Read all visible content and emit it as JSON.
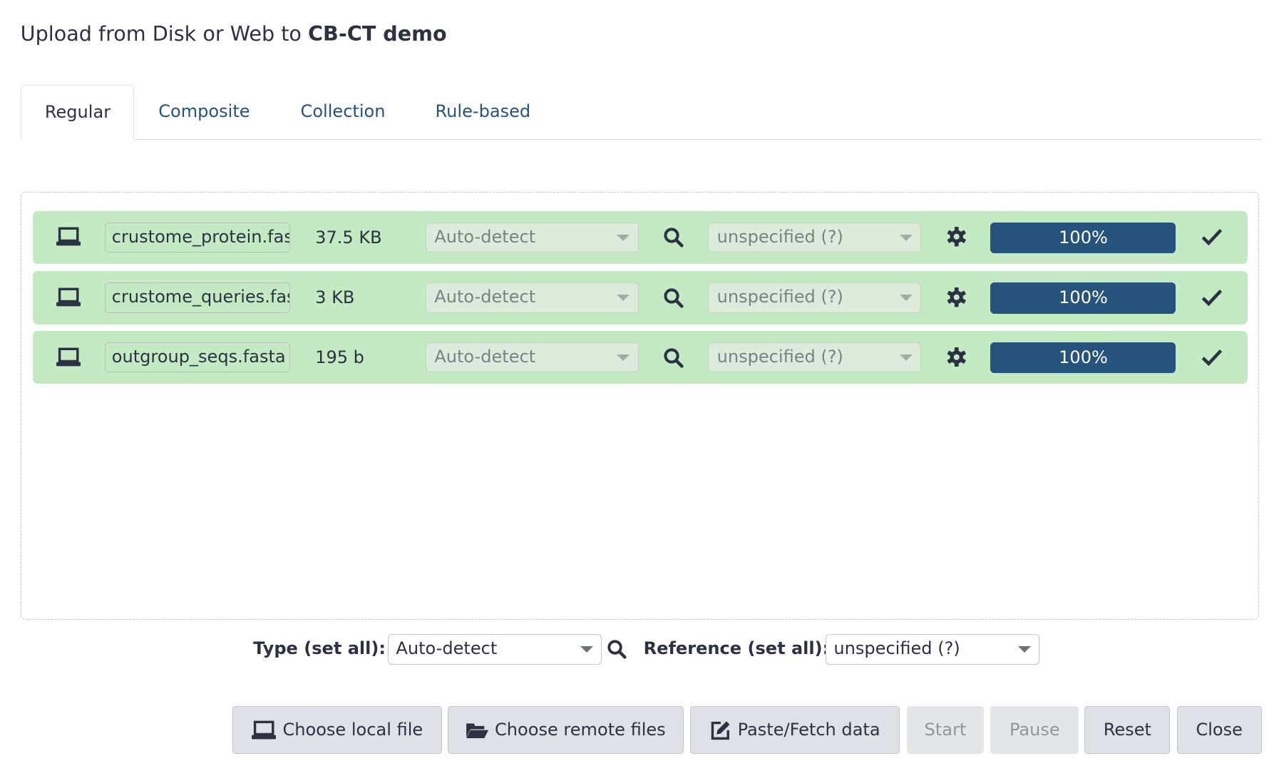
{
  "dialog": {
    "title_prefix": "Upload from Disk or Web to ",
    "title_history": "CB-CT demo"
  },
  "tabs": [
    {
      "label": "Regular",
      "active": true
    },
    {
      "label": "Composite"
    },
    {
      "label": "Collection"
    },
    {
      "label": "Rule-based"
    }
  ],
  "files": [
    {
      "source_icon": "laptop-icon",
      "name": "crustome_protein.fasta",
      "size": "37.5 KB",
      "type": "Auto-detect",
      "reference": "unspecified (?)",
      "progress_label": "100%",
      "progress": 100,
      "status_icon": "check-icon"
    },
    {
      "source_icon": "laptop-icon",
      "name": "crustome_queries.fasta",
      "size": "3 KB",
      "type": "Auto-detect",
      "reference": "unspecified (?)",
      "progress_label": "100%",
      "progress": 100,
      "status_icon": "check-icon"
    },
    {
      "source_icon": "laptop-icon",
      "name": "outgroup_seqs.fasta",
      "size": "195 b",
      "type": "Auto-detect",
      "reference": "unspecified (?)",
      "progress_label": "100%",
      "progress": 100,
      "status_icon": "check-icon"
    }
  ],
  "set_all": {
    "type_label": "Type (set all):",
    "type_value": "Auto-detect",
    "reference_label": "Reference (set all):",
    "reference_value": "unspecified (?)"
  },
  "buttons": {
    "choose_local": "Choose local file",
    "choose_remote": "Choose remote files",
    "paste_fetch": "Paste/Fetch data",
    "start": "Start",
    "pause": "Pause",
    "reset": "Reset",
    "close": "Close"
  },
  "colors": {
    "row_success": "#c3eac3",
    "progress": "#25537b",
    "tab_link": "#25537b"
  }
}
